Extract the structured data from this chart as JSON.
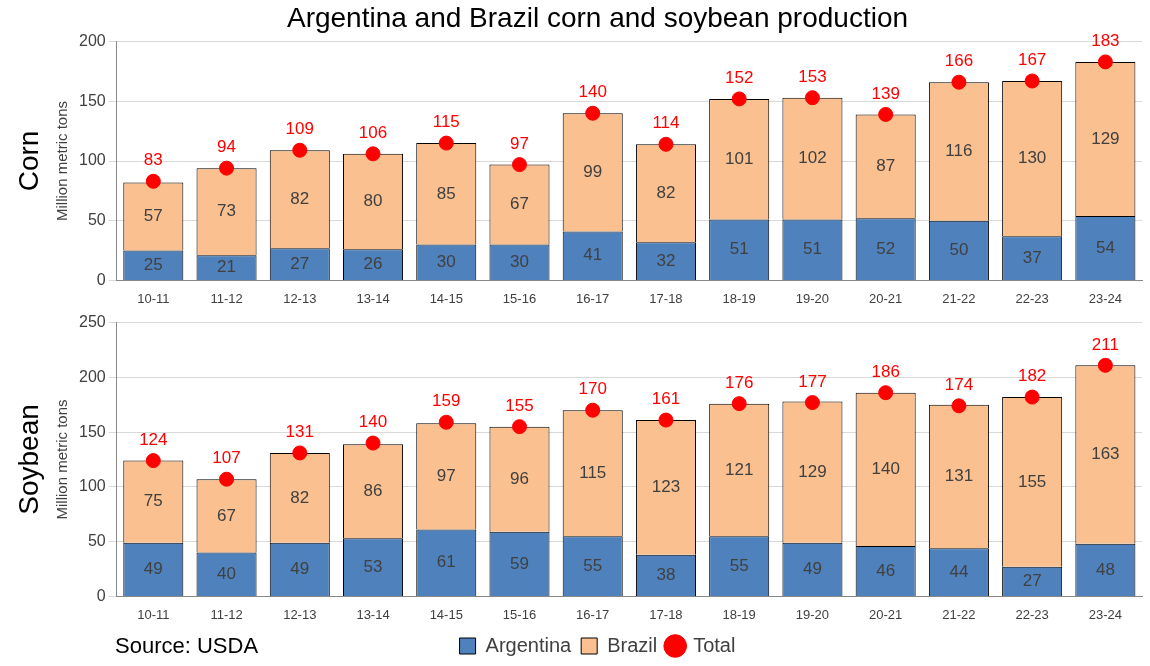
{
  "chart_data": [
    {
      "type": "bar",
      "title": "Argentina and Brazil corn and soybean production",
      "ylabel": "Million metric tons",
      "annotations": [
        "Corn"
      ],
      "categories": [
        "10-11",
        "11-12",
        "12-13",
        "13-14",
        "14-15",
        "15-16",
        "16-17",
        "17-18",
        "18-19",
        "19-20",
        "20-21",
        "21-22",
        "22-23",
        "23-24"
      ],
      "stacked": true,
      "ylim": [
        0,
        200
      ],
      "yticks": [
        0,
        50,
        100,
        150,
        200
      ],
      "grid": "y",
      "legend": false,
      "data_labels": true,
      "marker": "circle",
      "series": [
        {
          "color": "#4f81bd",
          "values": [
            25,
            21,
            27,
            26,
            30,
            30,
            41,
            32,
            51,
            51,
            52,
            50,
            37,
            54
          ]
        },
        {
          "color": "#fac090",
          "values": [
            57,
            73,
            82,
            80,
            85,
            67,
            99,
            82,
            101,
            102,
            87,
            116,
            130,
            129
          ]
        },
        {
          "type": "scatter",
          "color": "#ff0000",
          "values": [
            83,
            94,
            109,
            106,
            115,
            97,
            140,
            114,
            152,
            153,
            139,
            166,
            167,
            183
          ]
        }
      ]
    },
    {
      "type": "bar",
      "ylabel": "Million metric tons",
      "annotations": [
        "Soybean",
        "Source: USDA"
      ],
      "categories": [
        "10-11",
        "11-12",
        "12-13",
        "13-14",
        "14-15",
        "15-16",
        "16-17",
        "17-18",
        "18-19",
        "19-20",
        "20-21",
        "21-22",
        "22-23",
        "23-24"
      ],
      "stacked": true,
      "ylim": [
        0,
        250
      ],
      "yticks": [
        0,
        50,
        100,
        150,
        200,
        250
      ],
      "grid": "y",
      "legend": "bottom",
      "data_labels": true,
      "marker": "circle",
      "series": [
        {
          "name": "Argentina",
          "color": "#4f81bd",
          "values": [
            49,
            40,
            49,
            53,
            61,
            59,
            55,
            38,
            55,
            49,
            46,
            44,
            27,
            48
          ]
        },
        {
          "name": "Brazil",
          "color": "#fac090",
          "values": [
            75,
            67,
            82,
            86,
            97,
            96,
            115,
            123,
            121,
            129,
            140,
            131,
            155,
            163
          ]
        },
        {
          "name": "Total",
          "type": "scatter",
          "color": "#ff0000",
          "values": [
            124,
            107,
            131,
            140,
            159,
            155,
            170,
            161,
            176,
            177,
            186,
            174,
            182,
            211
          ]
        }
      ]
    }
  ]
}
